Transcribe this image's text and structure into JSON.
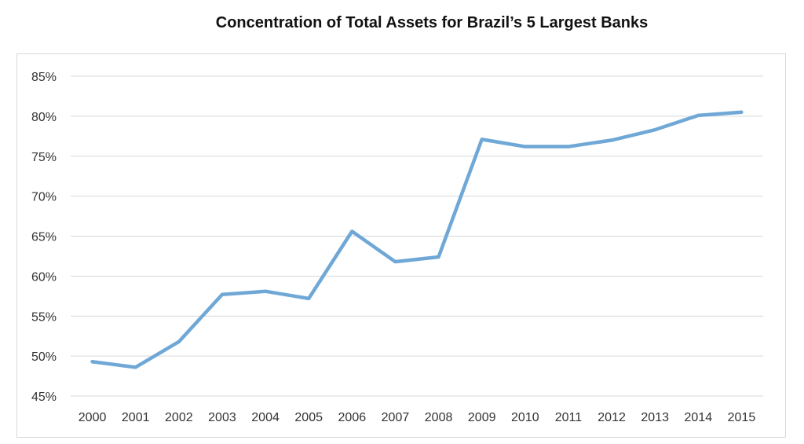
{
  "chart_data": {
    "type": "line",
    "title": "Concentration of Total Assets for Brazil’s 5 Largest Banks",
    "xlabel": "",
    "ylabel": "",
    "x": [
      "2000",
      "2001",
      "2002",
      "2003",
      "2004",
      "2005",
      "2006",
      "2007",
      "2008",
      "2009",
      "2010",
      "2011",
      "2012",
      "2013",
      "2014",
      "2015"
    ],
    "series": [
      {
        "values": [
          49.3,
          48.6,
          51.8,
          57.7,
          58.1,
          57.2,
          65.6,
          61.8,
          62.4,
          77.1,
          76.2,
          76.2,
          77.0,
          78.3,
          80.1,
          80.5
        ]
      }
    ],
    "yticks": [
      "45%",
      "50%",
      "55%",
      "60%",
      "65%",
      "70%",
      "75%",
      "80%",
      "85%"
    ],
    "ylim": [
      45,
      85
    ],
    "grid": true,
    "legend": "none",
    "line_color": "#6fa8d6",
    "grid_color": "#d9d9d9"
  }
}
